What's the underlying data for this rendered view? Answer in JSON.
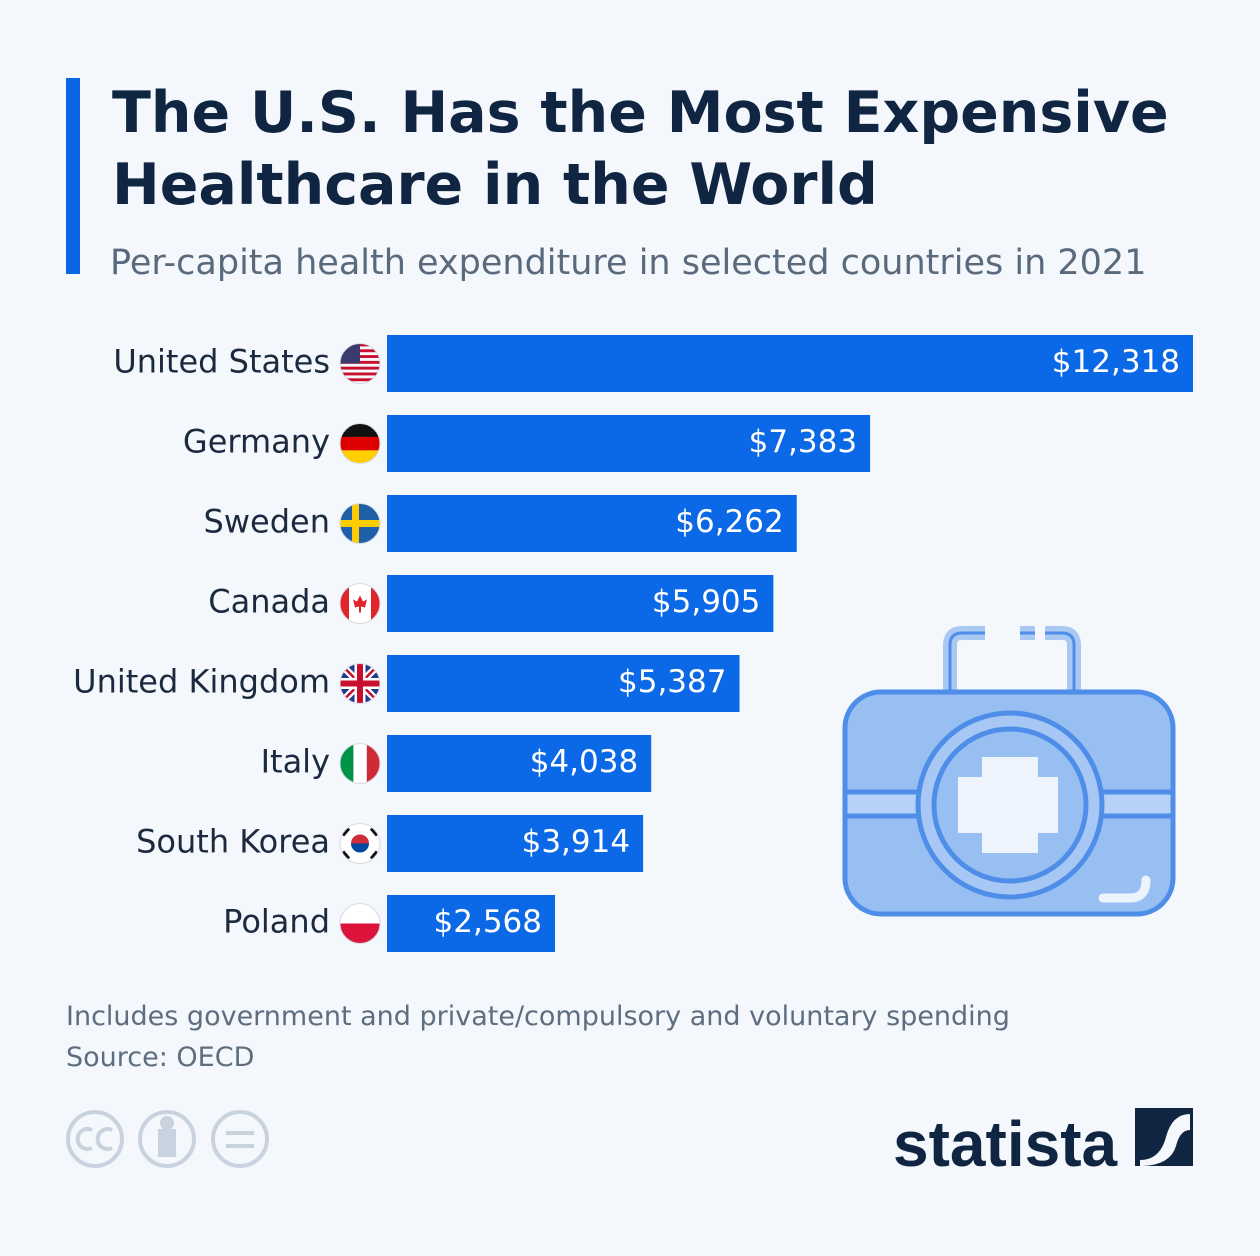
{
  "chart_data": {
    "type": "bar",
    "orientation": "horizontal",
    "title": "The U.S. Has the Most Expensive Healthcare in the World",
    "subtitle": "Per-capita health expenditure in selected countries in 2021",
    "categories": [
      "United States",
      "Germany",
      "Sweden",
      "Canada",
      "United Kingdom",
      "Italy",
      "South Korea",
      "Poland"
    ],
    "values": [
      12318,
      7383,
      6262,
      5905,
      5387,
      4038,
      3914,
      2568
    ],
    "value_labels": [
      "$12,318",
      "$7,383",
      "$6,262",
      "$5,905",
      "$5,387",
      "$4,038",
      "$3,914",
      "$2,568"
    ],
    "color": "#0b68e6",
    "note": "Includes government and private/compulsory and voluntary spending",
    "source": "Source: OECD",
    "brand": "statista"
  }
}
